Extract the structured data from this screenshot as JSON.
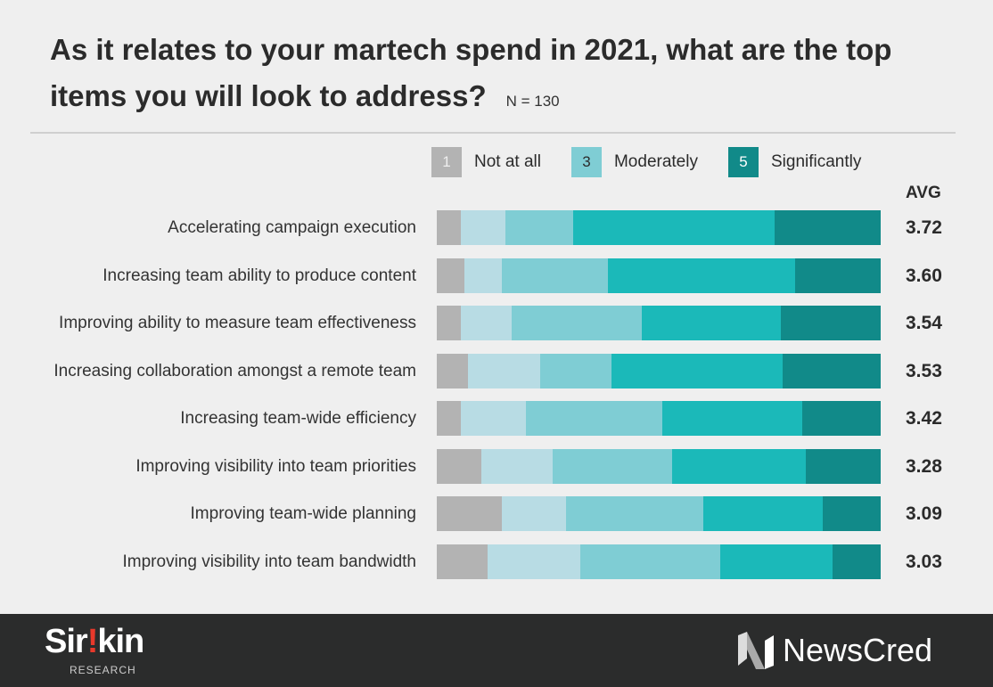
{
  "title": "As it relates to your martech spend in 2021, what are the top items you will look to address?",
  "n_label": "N = 130",
  "chart_data": {
    "type": "bar",
    "orientation": "horizontal",
    "stacked": "percent",
    "title": "As it relates to your martech spend in 2021, what are the top items you will look to address?",
    "legend": [
      {
        "key": "1",
        "label": "Not at all",
        "color": "#b3b3b3"
      },
      {
        "key": "3",
        "label": "Moderately",
        "color": "#7fcdd4"
      },
      {
        "key": "5",
        "label": "Significantly",
        "color": "#118a89"
      }
    ],
    "legend_placement": "top",
    "segment_colors": [
      "#b3b3b3",
      "#b8dce4",
      "#7fcdd4",
      "#1bb9b9",
      "#118a89"
    ],
    "avg_header": "AVG",
    "categories": [
      "Accelerating campaign execution",
      "Increasing team ability to produce content",
      "Improving ability to measure team effectiveness",
      "Increasing collaboration amongst a remote team",
      "Increasing team-wide efficiency",
      "Improving visibility into team priorities",
      "Improving team-wide planning",
      "Improving visibility into team bandwidth"
    ],
    "series": [
      {
        "values": [
          5.4,
          6.2,
          5.4,
          7.0,
          5.4,
          10.0,
          14.6,
          11.5
        ]
      },
      {
        "values": [
          10.0,
          8.5,
          11.5,
          16.2,
          14.6,
          16.2,
          14.6,
          20.8
        ]
      },
      {
        "values": [
          15.4,
          23.8,
          29.2,
          16.2,
          30.8,
          26.9,
          30.8,
          31.5
        ]
      },
      {
        "values": [
          45.4,
          42.3,
          31.5,
          38.5,
          31.5,
          30.0,
          26.9,
          25.4
        ]
      },
      {
        "values": [
          23.8,
          19.2,
          22.4,
          22.1,
          17.7,
          16.9,
          13.1,
          10.8
        ]
      }
    ],
    "averages": [
      "3.72",
      "3.60",
      "3.54",
      "3.53",
      "3.42",
      "3.28",
      "3.09",
      "3.03"
    ]
  },
  "footer": {
    "left_logo": "Sirkin RESEARCH",
    "left_sub": "RESEARCH",
    "right_logo": "NewsCred"
  }
}
